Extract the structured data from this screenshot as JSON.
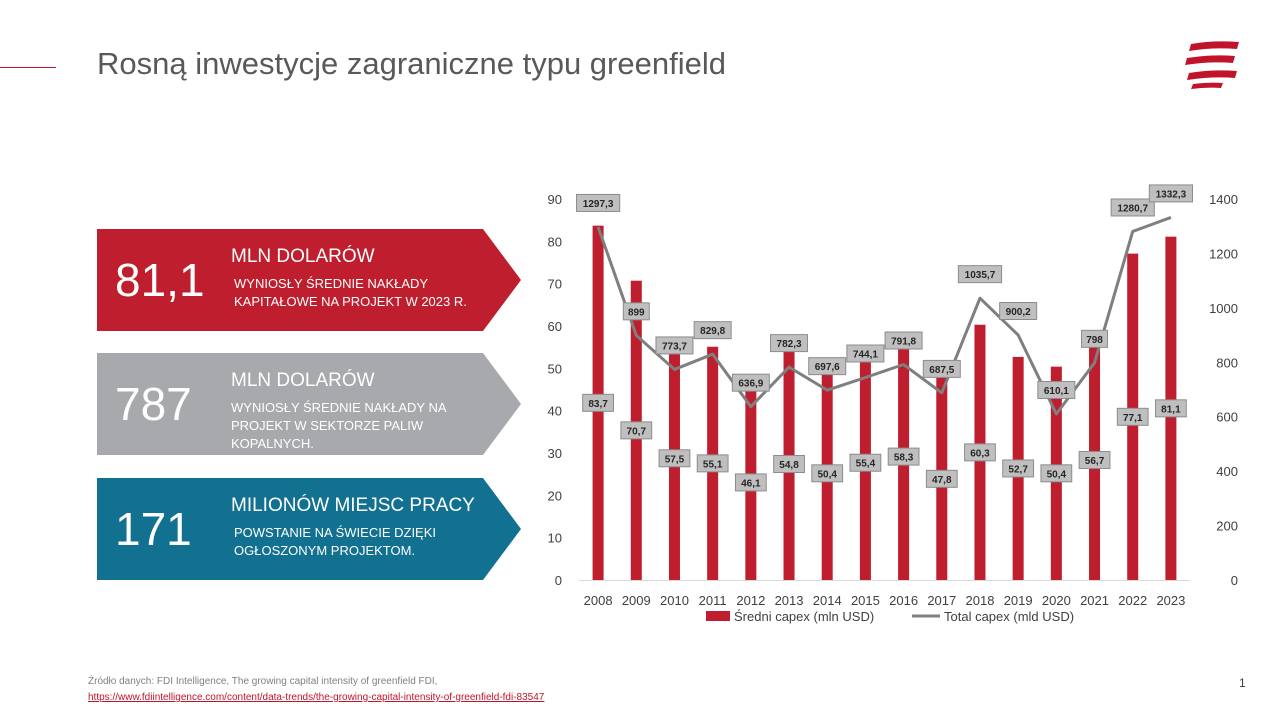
{
  "slide": {
    "title": "Rosną inwestycje zagraniczne typu greenfield",
    "page_number": "1"
  },
  "colors": {
    "accent_red": "#c0142b",
    "gray": "#a6a8ab",
    "teal": "#13728d",
    "line": "#7f7f7f"
  },
  "cards": [
    {
      "value": "81,1",
      "heading": "MLN DOLARÓW",
      "description": "WYNIOSŁY ŚREDNIE NAKŁADY KAPITAŁOWE NA PROJEKT W 2023 R.",
      "color": "#be1e2d"
    },
    {
      "value": "787",
      "heading": "MLN DOLARÓW",
      "description": "WYNIOSŁY ŚREDNIE NAKŁADY NA PROJEKT W SEKTORZE PALIW KOPALNYCH.",
      "color": "#a7a9ac"
    },
    {
      "value": "171",
      "heading": "MILIONÓW MIEJSC PRACY",
      "description": "POWSTANIE NA ŚWIECIE DZIĘKI OGŁOSZONYM PROJEKTOM.",
      "color": "#127191"
    }
  ],
  "source": {
    "text": "Źródło danych: FDI Intelligence, The growing capital intensity of greenfield FDI,",
    "url": "https://www.fdiintelligence.com/content/data-trends/the-growing-capital-intensity-of-greenfield-fdi-83547"
  },
  "chart_data": {
    "type": "bar",
    "categories": [
      "2008",
      "2009",
      "2010",
      "2011",
      "2012",
      "2013",
      "2014",
      "2015",
      "2016",
      "2017",
      "2018",
      "2019",
      "2020",
      "2021",
      "2022",
      "2023"
    ],
    "series": [
      {
        "name": "Średni capex (mln USD)",
        "type": "bar",
        "axis": "left",
        "values": [
          83.7,
          70.7,
          57.5,
          55.1,
          46.1,
          54.8,
          50.4,
          55.4,
          58.3,
          47.8,
          60.3,
          52.7,
          50.4,
          56.7,
          77.1,
          81.1
        ],
        "labels": [
          "83,7",
          "70,7",
          "57,5",
          "55,1",
          "46,1",
          "54,8",
          "50,4",
          "55,4",
          "58,3",
          "47,8",
          "60,3",
          "52,7",
          "50,4",
          "56,7",
          "77,1",
          "81,1"
        ],
        "color": "#be1e2d"
      },
      {
        "name": "Total capex (mld USD)",
        "type": "line",
        "axis": "right",
        "values": [
          1297.3,
          899,
          773.7,
          829.8,
          636.9,
          782.3,
          697.6,
          744.1,
          791.8,
          687.5,
          1035.7,
          900.2,
          610.1,
          798,
          1280.7,
          1332.3
        ],
        "labels": [
          "1297,3",
          "899",
          "773,7",
          "829,8",
          "636,9",
          "782,3",
          "697,6",
          "744,1",
          "791,8",
          "687,5",
          "1035,7",
          "900,2",
          "610,1",
          "798",
          "1280,7",
          "1332,3"
        ],
        "color": "#7f7f7f"
      }
    ],
    "y_left": {
      "min": 0,
      "max": 90,
      "ticks": [
        "0",
        "10",
        "20",
        "30",
        "40",
        "50",
        "60",
        "70",
        "80",
        "90"
      ]
    },
    "y_right": {
      "min": 0,
      "max": 1400,
      "ticks": [
        "0",
        "200",
        "400",
        "600",
        "800",
        "1000",
        "1200",
        "1400"
      ]
    },
    "grid": false,
    "legend": "bottom"
  }
}
